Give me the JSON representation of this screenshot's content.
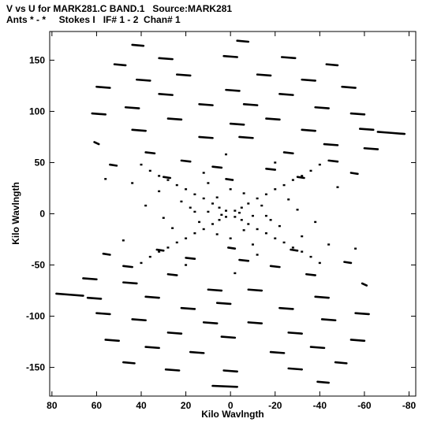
{
  "chart_data": {
    "type": "scatter",
    "title": "V vs U for MARK281.C BAND.1   Source:MARK281",
    "subtitle": "Ants * - *     Stokes I   IF# 1 - 2  Chan# 1",
    "xlabel": "Kilo Wavlngth",
    "ylabel": "Kilo Wavlngth",
    "xlim": [
      81,
      -83
    ],
    "ylim": [
      -178,
      178
    ],
    "x_ticks": [
      80,
      60,
      40,
      20,
      0,
      -20,
      -40,
      -60,
      -80
    ],
    "x_tick_labels": [
      "80",
      "60",
      "40",
      "20",
      "0",
      "-20",
      "-40",
      "-60",
      "-80"
    ],
    "y_ticks": [
      -150,
      -100,
      -50,
      0,
      50,
      100,
      150
    ],
    "y_tick_labels": [
      "-150",
      "-100",
      "-50",
      "0",
      "50",
      "100",
      "150"
    ],
    "grid": false,
    "marker_color": "#000000",
    "tracks": [
      {
        "u0": -3,
        "v0": 169,
        "u1": -8,
        "v1": 168
      },
      {
        "u0": 44,
        "v0": 165,
        "u1": 39,
        "v1": 164
      },
      {
        "u0": 32,
        "v0": 152,
        "u1": 26,
        "v1": 151
      },
      {
        "u0": 3,
        "v0": 154,
        "u1": -3,
        "v1": 153
      },
      {
        "u0": -23,
        "v0": 153,
        "u1": -29,
        "v1": 152
      },
      {
        "u0": 52,
        "v0": 146,
        "u1": 47,
        "v1": 145
      },
      {
        "u0": -43,
        "v0": 146,
        "u1": -48,
        "v1": 145
      },
      {
        "u0": 24,
        "v0": 136,
        "u1": 18,
        "v1": 135
      },
      {
        "u0": -12,
        "v0": 136,
        "u1": -18,
        "v1": 135
      },
      {
        "u0": 42,
        "v0": 131,
        "u1": 36,
        "v1": 130
      },
      {
        "u0": -32,
        "v0": 131,
        "u1": -38,
        "v1": 130
      },
      {
        "u0": 60,
        "v0": 124,
        "u1": 54,
        "v1": 123
      },
      {
        "u0": -50,
        "v0": 124,
        "u1": -56,
        "v1": 123
      },
      {
        "u0": 2,
        "v0": 121,
        "u1": -4,
        "v1": 120
      },
      {
        "u0": 32,
        "v0": 117,
        "u1": 26,
        "v1": 116
      },
      {
        "u0": -22,
        "v0": 117,
        "u1": -28,
        "v1": 116
      },
      {
        "u0": 14,
        "v0": 107,
        "u1": 8,
        "v1": 106
      },
      {
        "u0": -6,
        "v0": 107,
        "u1": -12,
        "v1": 106
      },
      {
        "u0": 47,
        "v0": 104,
        "u1": 41,
        "v1": 103
      },
      {
        "u0": -38,
        "v0": 104,
        "u1": -44,
        "v1": 103
      },
      {
        "u0": 62,
        "v0": 98,
        "u1": 56,
        "v1": 97
      },
      {
        "u0": -54,
        "v0": 98,
        "u1": -60,
        "v1": 97
      },
      {
        "u0": 28,
        "v0": 93,
        "u1": 22,
        "v1": 92
      },
      {
        "u0": -16,
        "v0": 93,
        "u1": -22,
        "v1": 92
      },
      {
        "u0": 0,
        "v0": 88,
        "u1": -6,
        "v1": 87
      },
      {
        "u0": -58,
        "v0": 83,
        "u1": -64,
        "v1": 82
      },
      {
        "u0": -66,
        "v0": 80,
        "u1": -72,
        "v1": 79
      },
      {
        "u0": -72,
        "v0": 79,
        "u1": -78,
        "v1": 78
      },
      {
        "u0": 61,
        "v0": 70,
        "u1": 59,
        "v1": 68
      },
      {
        "u0": 44,
        "v0": 82,
        "u1": 38,
        "v1": 81
      },
      {
        "u0": -32,
        "v0": 82,
        "u1": -38,
        "v1": 81
      },
      {
        "u0": 14,
        "v0": 75,
        "u1": 8,
        "v1": 74
      },
      {
        "u0": -4,
        "v0": 75,
        "u1": -10,
        "v1": 74
      },
      {
        "u0": -42,
        "v0": 68,
        "u1": -48,
        "v1": 67
      },
      {
        "u0": -60,
        "v0": 64,
        "u1": -66,
        "v1": 63
      },
      {
        "u0": 38,
        "v0": 60,
        "u1": 34,
        "v1": 59
      },
      {
        "u0": -24,
        "v0": 60,
        "u1": -28,
        "v1": 59
      },
      {
        "u0": 22,
        "v0": 52,
        "u1": 18,
        "v1": 51
      },
      {
        "u0": -44,
        "v0": 52,
        "u1": -48,
        "v1": 51
      },
      {
        "u0": 8,
        "v0": 46,
        "u1": 4,
        "v1": 45
      },
      {
        "u0": -16,
        "v0": 44,
        "u1": -20,
        "v1": 43
      },
      {
        "u0": 30,
        "v0": 36,
        "u1": 27,
        "v1": 35
      },
      {
        "u0": -30,
        "v0": 36,
        "u1": -33,
        "v1": 35
      },
      {
        "u0": 2,
        "v0": 34,
        "u1": -1,
        "v1": 33
      },
      {
        "u0": 54,
        "v0": 48,
        "u1": 51,
        "v1": 47
      },
      {
        "u0": -54,
        "v0": 40,
        "u1": -57,
        "v1": 39
      },
      {
        "u0": -3,
        "v0": -169,
        "u1": 8,
        "v1": -168
      },
      {
        "u0": -44,
        "v0": -165,
        "u1": -39,
        "v1": -164
      },
      {
        "u0": -32,
        "v0": -152,
        "u1": -26,
        "v1": -151
      },
      {
        "u0": -3,
        "v0": -154,
        "u1": 3,
        "v1": -153
      },
      {
        "u0": 23,
        "v0": -153,
        "u1": 29,
        "v1": -152
      },
      {
        "u0": -52,
        "v0": -146,
        "u1": -47,
        "v1": -145
      },
      {
        "u0": 43,
        "v0": -146,
        "u1": 48,
        "v1": -145
      },
      {
        "u0": -24,
        "v0": -136,
        "u1": -18,
        "v1": -135
      },
      {
        "u0": 12,
        "v0": -136,
        "u1": 18,
        "v1": -135
      },
      {
        "u0": -42,
        "v0": -131,
        "u1": -36,
        "v1": -130
      },
      {
        "u0": 32,
        "v0": -131,
        "u1": 38,
        "v1": -130
      },
      {
        "u0": -60,
        "v0": -124,
        "u1": -54,
        "v1": -123
      },
      {
        "u0": 50,
        "v0": -124,
        "u1": 56,
        "v1": -123
      },
      {
        "u0": -2,
        "v0": -121,
        "u1": 4,
        "v1": -120
      },
      {
        "u0": -32,
        "v0": -117,
        "u1": -26,
        "v1": -116
      },
      {
        "u0": 22,
        "v0": -117,
        "u1": 28,
        "v1": -116
      },
      {
        "u0": -14,
        "v0": -107,
        "u1": -8,
        "v1": -106
      },
      {
        "u0": 6,
        "v0": -107,
        "u1": 12,
        "v1": -106
      },
      {
        "u0": -47,
        "v0": -104,
        "u1": -41,
        "v1": -103
      },
      {
        "u0": 38,
        "v0": -104,
        "u1": 44,
        "v1": -103
      },
      {
        "u0": -62,
        "v0": -98,
        "u1": -56,
        "v1": -97
      },
      {
        "u0": 54,
        "v0": -98,
        "u1": 60,
        "v1": -97
      },
      {
        "u0": -28,
        "v0": -93,
        "u1": -22,
        "v1": -92
      },
      {
        "u0": 16,
        "v0": -93,
        "u1": 22,
        "v1": -92
      },
      {
        "u0": 0,
        "v0": -88,
        "u1": 6,
        "v1": -87
      },
      {
        "u0": 58,
        "v0": -83,
        "u1": 64,
        "v1": -82
      },
      {
        "u0": 66,
        "v0": -80,
        "u1": 72,
        "v1": -79
      },
      {
        "u0": 72,
        "v0": -79,
        "u1": 78,
        "v1": -78
      },
      {
        "u0": -61,
        "v0": -70,
        "u1": -59,
        "v1": -68
      },
      {
        "u0": -44,
        "v0": -82,
        "u1": -38,
        "v1": -81
      },
      {
        "u0": 32,
        "v0": -82,
        "u1": 38,
        "v1": -81
      },
      {
        "u0": -14,
        "v0": -75,
        "u1": -8,
        "v1": -74
      },
      {
        "u0": 4,
        "v0": -75,
        "u1": 10,
        "v1": -74
      },
      {
        "u0": 42,
        "v0": -68,
        "u1": 48,
        "v1": -67
      },
      {
        "u0": 60,
        "v0": -64,
        "u1": 66,
        "v1": -63
      },
      {
        "u0": -38,
        "v0": -60,
        "u1": -34,
        "v1": -59
      },
      {
        "u0": 24,
        "v0": -60,
        "u1": 28,
        "v1": -59
      },
      {
        "u0": -22,
        "v0": -52,
        "u1": -18,
        "v1": -51
      },
      {
        "u0": 44,
        "v0": -52,
        "u1": 48,
        "v1": -51
      },
      {
        "u0": -8,
        "v0": -46,
        "u1": -4,
        "v1": -45
      },
      {
        "u0": 16,
        "v0": -44,
        "u1": 20,
        "v1": -43
      },
      {
        "u0": -30,
        "v0": -36,
        "u1": -27,
        "v1": -35
      },
      {
        "u0": 30,
        "v0": -36,
        "u1": 33,
        "v1": -35
      },
      {
        "u0": -2,
        "v0": -34,
        "u1": 1,
        "v1": -33
      },
      {
        "u0": -54,
        "v0": -48,
        "u1": -51,
        "v1": -47
      },
      {
        "u0": 54,
        "v0": -40,
        "u1": 57,
        "v1": -39
      }
    ],
    "diagonal_points": [
      {
        "u": 40,
        "v": 48
      },
      {
        "u": 36,
        "v": 42
      },
      {
        "u": 32,
        "v": 37
      },
      {
        "u": 28,
        "v": 33
      },
      {
        "u": 24,
        "v": 28
      },
      {
        "u": 20,
        "v": 24
      },
      {
        "u": 16,
        "v": 19
      },
      {
        "u": 12,
        "v": 15
      },
      {
        "u": 8,
        "v": 10
      },
      {
        "u": 5,
        "v": 6
      },
      {
        "u": 2,
        "v": 3
      },
      {
        "u": -40,
        "v": 48
      },
      {
        "u": -36,
        "v": 42
      },
      {
        "u": -32,
        "v": 37
      },
      {
        "u": -28,
        "v": 33
      },
      {
        "u": -24,
        "v": 28
      },
      {
        "u": -20,
        "v": 24
      },
      {
        "u": -16,
        "v": 19
      },
      {
        "u": -12,
        "v": 15
      },
      {
        "u": -8,
        "v": 10
      },
      {
        "u": -5,
        "v": 6
      },
      {
        "u": -2,
        "v": 3
      },
      {
        "u": 40,
        "v": -48
      },
      {
        "u": 36,
        "v": -42
      },
      {
        "u": 32,
        "v": -37
      },
      {
        "u": 28,
        "v": -33
      },
      {
        "u": 24,
        "v": -28
      },
      {
        "u": 20,
        "v": -24
      },
      {
        "u": 16,
        "v": -19
      },
      {
        "u": 12,
        "v": -15
      },
      {
        "u": 8,
        "v": -10
      },
      {
        "u": 5,
        "v": -6
      },
      {
        "u": 2,
        "v": -3
      },
      {
        "u": -40,
        "v": -48
      },
      {
        "u": -36,
        "v": -42
      },
      {
        "u": -32,
        "v": -37
      },
      {
        "u": -28,
        "v": -33
      },
      {
        "u": -24,
        "v": -28
      },
      {
        "u": -20,
        "v": -24
      },
      {
        "u": -16,
        "v": -19
      },
      {
        "u": -12,
        "v": -15
      },
      {
        "u": -8,
        "v": -10
      },
      {
        "u": -5,
        "v": -6
      },
      {
        "u": -2,
        "v": -3
      },
      {
        "u": 10,
        "v": 2
      },
      {
        "u": -10,
        "v": -2
      },
      {
        "u": 4,
        "v": -1
      },
      {
        "u": -4,
        "v": 1
      },
      {
        "u": 14,
        "v": -8
      },
      {
        "u": -14,
        "v": 8
      },
      {
        "u": 6,
        "v": 16
      },
      {
        "u": -6,
        "v": -16
      },
      {
        "u": 18,
        "v": 6
      },
      {
        "u": -18,
        "v": -6
      },
      {
        "u": 0,
        "v": 24
      },
      {
        "u": 0,
        "v": -24
      },
      {
        "u": 10,
        "v": 30
      },
      {
        "u": -10,
        "v": -30
      },
      {
        "u": 22,
        "v": 12
      },
      {
        "u": -22,
        "v": -12
      },
      {
        "u": 26,
        "v": -14
      },
      {
        "u": -26,
        "v": 14
      },
      {
        "u": 6,
        "v": -20
      },
      {
        "u": -6,
        "v": 20
      },
      {
        "u": 32,
        "v": 22
      },
      {
        "u": -32,
        "v": -22
      },
      {
        "u": 12,
        "v": 40
      },
      {
        "u": -12,
        "v": -40
      },
      {
        "u": 44,
        "v": 30
      },
      {
        "u": -44,
        "v": -30
      },
      {
        "u": 48,
        "v": -26
      },
      {
        "u": -48,
        "v": 26
      },
      {
        "u": 20,
        "v": -50
      },
      {
        "u": -20,
        "v": 50
      },
      {
        "u": 56,
        "v": 34
      },
      {
        "u": -56,
        "v": -34
      },
      {
        "u": 2,
        "v": 58
      },
      {
        "u": -2,
        "v": -58
      },
      {
        "u": 38,
        "v": 8
      },
      {
        "u": -38,
        "v": -8
      },
      {
        "u": 30,
        "v": -4
      },
      {
        "u": -30,
        "v": 4
      },
      {
        "u": 16,
        "v": 2
      },
      {
        "u": -16,
        "v": -2
      }
    ]
  }
}
